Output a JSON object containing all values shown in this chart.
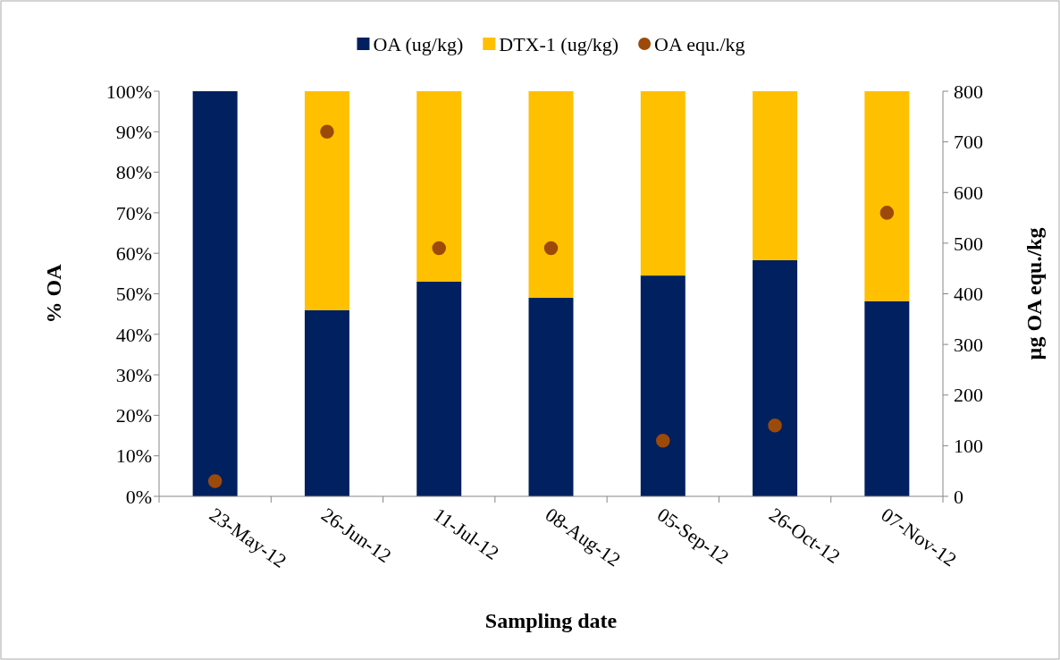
{
  "chart_data": {
    "type": "bar",
    "stacked": true,
    "xlabel": "Sampling date",
    "ylabel": "% OA",
    "y2label": "µg OA equ./kg",
    "categories": [
      "23-May-12",
      "26-Jun-12",
      "11-Jul-12",
      "08-Aug-12",
      "05-Sep-12",
      "26-Oct-12",
      "07-Nov-12"
    ],
    "series": [
      {
        "name": "OA (ug/kg)",
        "color": "#002060",
        "values": [
          100,
          46,
          53,
          49,
          54.5,
          58.3,
          48.2
        ]
      },
      {
        "name": "DTX-1 (ug/kg)",
        "color": "#ffc000",
        "values": [
          0,
          54,
          47,
          51,
          45.5,
          41.7,
          51.8
        ]
      },
      {
        "name": "OA equ./kg",
        "type": "scatter",
        "axis": "y2",
        "marker": "circle",
        "color": "#9c4a0a",
        "values": [
          30,
          720,
          490,
          490,
          110,
          140,
          560
        ]
      }
    ],
    "ylim": [
      0,
      100
    ],
    "yticks": [
      {
        "value": 0,
        "label": "0%"
      },
      {
        "value": 10,
        "label": "10%"
      },
      {
        "value": 20,
        "label": "20%"
      },
      {
        "value": 30,
        "label": "30%"
      },
      {
        "value": 40,
        "label": "40%"
      },
      {
        "value": 50,
        "label": "50%"
      },
      {
        "value": 60,
        "label": "60%"
      },
      {
        "value": 70,
        "label": "70%"
      },
      {
        "value": 80,
        "label": "80%"
      },
      {
        "value": 90,
        "label": "90%"
      },
      {
        "value": 100,
        "label": "100%"
      }
    ],
    "y2lim": [
      0,
      800
    ],
    "y2ticks": [
      0,
      100,
      200,
      300,
      400,
      500,
      600,
      700,
      800
    ],
    "legend": "top",
    "grid": false
  }
}
